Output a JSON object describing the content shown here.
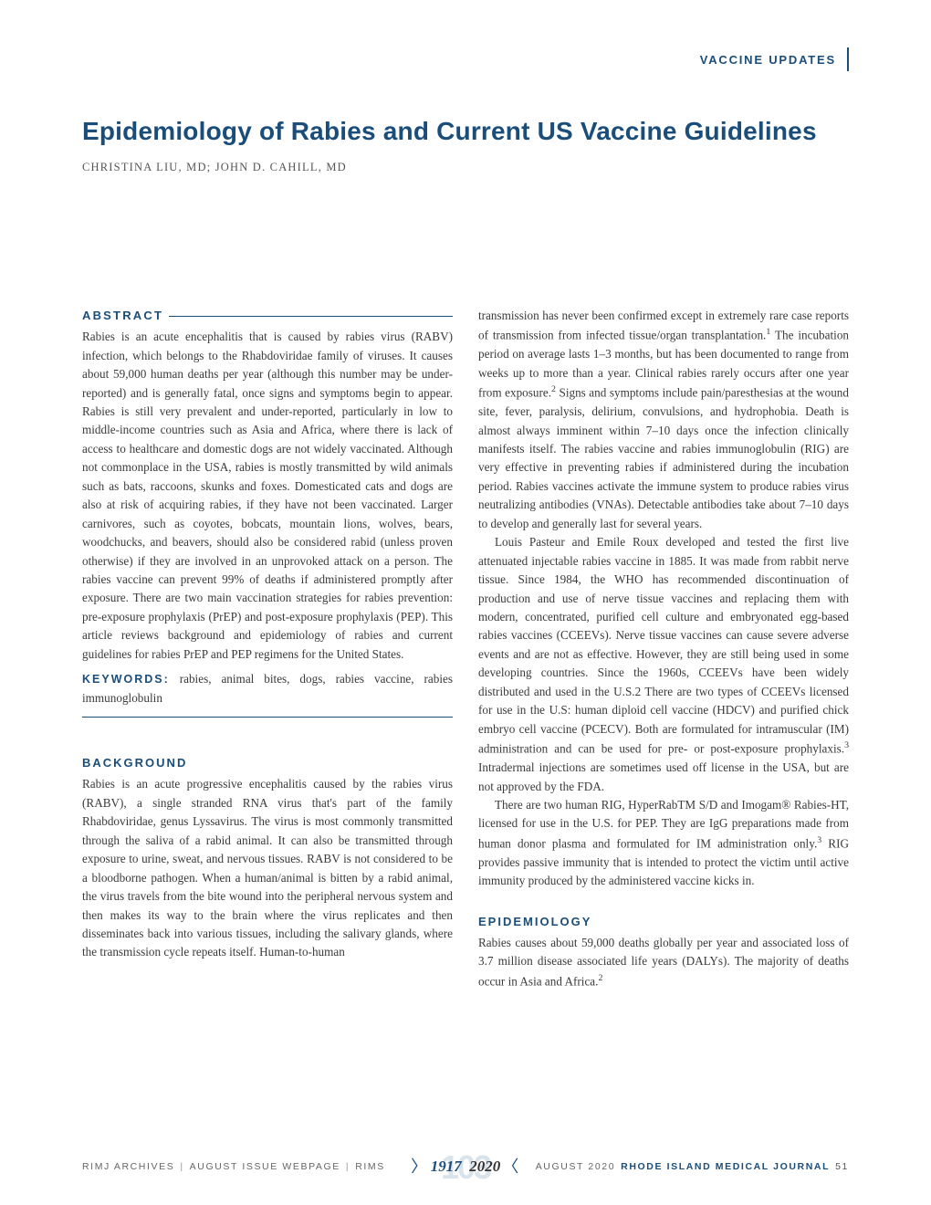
{
  "header": {
    "section_label": "VACCINE UPDATES"
  },
  "article": {
    "title": "Epidemiology of Rabies and Current US Vaccine Guidelines",
    "authors": "CHRISTINA LIU, MD; JOHN D. CAHILL, MD"
  },
  "abstract": {
    "label": "ABSTRACT",
    "text": "Rabies is an acute encephalitis that is caused by rabies virus (RABV) infection, which belongs to the Rhabdoviridae family of viruses. It causes about 59,000 human deaths per year (although this number may be under-reported) and is generally fatal, once signs and symptoms begin to appear. Rabies is still very prevalent and under-reported, particularly in low to middle-income countries such as Asia and Africa, where there is lack of access to healthcare and domestic dogs are not widely vaccinated. Although not commonplace in the USA, rabies is mostly transmitted by wild animals such as bats, raccoons, skunks and foxes. Domesticated cats and dogs are also at risk of acquiring rabies, if they have not been vaccinated. Larger carnivores, such as coyotes, bobcats, mountain lions, wolves, bears, woodchucks, and beavers, should also be considered rabid (unless proven otherwise) if they are involved in an unprovoked attack on a person. The rabies vaccine can prevent 99% of deaths if administered promptly after exposure. There are two main vaccination strategies for rabies prevention: pre-exposure prophylaxis (PrEP) and post-exposure prophylaxis (PEP). This article reviews background and epidemiology of rabies and current guidelines for rabies PrEP and PEP regimens for the United States.",
    "keywords_label": "KEYWORDS:",
    "keywords_text": " rabies, animal bites, dogs, rabies vaccine, rabies immunoglobulin"
  },
  "background": {
    "heading": "BACKGROUND",
    "para1": "Rabies is an acute progressive encephalitis caused by the rabies virus (RABV), a single stranded RNA virus that's part of the family Rhabdoviridae, genus Lyssavirus. The virus is most commonly transmitted through the saliva of a rabid animal. It can also be transmitted through exposure to urine, sweat, and nervous tissues. RABV is not considered to be a bloodborne pathogen. When a human/animal is bitten by a rabid animal, the virus travels from the bite wound into the peripheral nervous system and then makes its way to the brain where the virus replicates and then disseminates back into various tissues, including the salivary glands, where the transmission cycle repeats itself. Human-to-human",
    "col2_para1_a": "transmission has never been confirmed except in extremely rare case reports of transmission from infected tissue/organ transplantation.",
    "col2_para1_b": " The incubation period on average lasts 1–3 months, but has been documented to range from weeks up to more than a year. Clinical rabies rarely occurs after one year from exposure.",
    "col2_para1_c": " Signs and symptoms include pain/paresthesias at the wound site, fever, paralysis, delirium, convulsions, and hydrophobia. Death is almost always imminent within 7–10 days once the infection clinically manifests itself. The rabies vaccine and rabies immunoglobulin (RIG) are very effective in preventing rabies if administered during the incubation period. Rabies vaccines activate the immune system to produce rabies virus neutralizing antibodies (VNAs). Detectable antibodies take about 7–10 days to develop and generally last for several years.",
    "col2_para2_a": "Louis Pasteur and Emile Roux developed and tested the first live attenuated injectable rabies vaccine in 1885. It was made from rabbit nerve tissue. Since 1984, the WHO has recommended discontinuation of production and use of nerve tissue vaccines and replacing them with modern, concentrated, purified cell culture and embryonated egg-based rabies vaccines (CCEEVs). Nerve tissue vaccines can cause severe adverse events and are not as effective. However, they are still being used in some developing countries. Since the 1960s, CCEEVs have been widely distributed and used in the U.S.2 There are two types of CCEEVs licensed for use in the U.S: human diploid cell vaccine (HDCV) and purified chick embryo cell vaccine (PCECV). Both are formulated for intramuscular (IM) administration and can be used for pre- or post-exposure prophylaxis.",
    "col2_para2_b": " Intradermal injections are sometimes used off license in the USA, but are not approved by the FDA.",
    "col2_para3_a": "There are two human RIG, HyperRabTM S/D and Imogam® Rabies-HT, licensed for use in the U.S. for PEP. They are IgG preparations made from human donor plasma and formulated for IM administration only.",
    "col2_para3_b": " RIG provides passive immunity that is intended to protect the victim until active immunity produced by the administered vaccine kicks in."
  },
  "epidemiology": {
    "heading": "EPIDEMIOLOGY",
    "para1_a": "Rabies causes about 59,000 deaths globally per year and associated loss of 3.7 million disease associated life years (DALYs). The majority of deaths occur in Asia and Africa."
  },
  "footer": {
    "archives": "RIMJ ARCHIVES",
    "issue": "AUGUST ISSUE WEBPAGE",
    "rims": "RIMS",
    "year_start": "1917",
    "year_end": "2020",
    "bg_num": "103",
    "date": "AUGUST 2020",
    "journal": "RHODE ISLAND MEDICAL JOURNAL",
    "page": "51"
  },
  "colors": {
    "brand": "#1a4d7a",
    "text": "#3a3a3a",
    "muted": "#666666",
    "bg": "#ffffff"
  }
}
